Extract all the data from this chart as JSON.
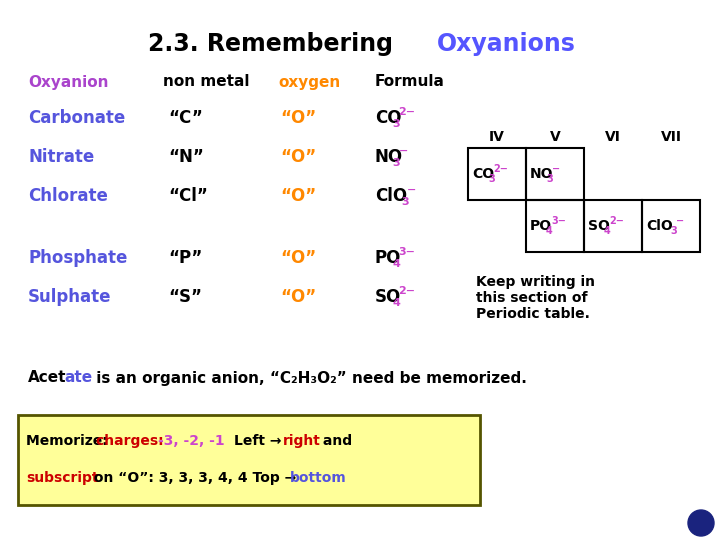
{
  "title_prefix": "2.3. Remembering ",
  "title_suffix": "Oxyanions",
  "title_prefix_color": "#000000",
  "title_suffix_color": "#5555ff",
  "bg_color": "#ffffff",
  "header_colors": [
    "#aa44cc",
    "#000000",
    "#ff8800",
    "#000000"
  ],
  "rows": [
    {
      "name": "Carbonate",
      "nm": "“C”",
      "ox": "“O”",
      "formula": [
        "CO",
        "3",
        "2−"
      ]
    },
    {
      "name": "Nitrate",
      "nm": "“N”",
      "ox": "“O”",
      "formula": [
        "NO",
        "3",
        "−"
      ]
    },
    {
      "name": "Chlorate",
      "nm": "“Cl”",
      "ox": "“O”",
      "formula": [
        "ClO",
        "3",
        "−"
      ]
    },
    {
      "name": "Phosphate",
      "nm": "“P”",
      "ox": "“O”",
      "formula": [
        "PO",
        "4",
        "3−"
      ]
    },
    {
      "name": "Sulphate",
      "nm": "“S”",
      "ox": "“O”",
      "formula": [
        "SO",
        "4",
        "2−"
      ]
    }
  ],
  "name_color": "#5555dd",
  "ox_color": "#ff8800",
  "formula_sub_color": "#cc44cc",
  "periodic_headers": [
    "IV",
    "V",
    "VI",
    "VII"
  ],
  "cell_contents": [
    [
      0,
      0,
      "CO",
      "3",
      "2−"
    ],
    [
      1,
      0,
      "NO",
      "3",
      "−"
    ],
    [
      1,
      1,
      "PO",
      "4",
      "3−"
    ],
    [
      2,
      1,
      "SO",
      "4",
      "2−"
    ],
    [
      3,
      1,
      "ClO",
      "3",
      "−"
    ]
  ],
  "memorize_box_bg": "#ffff99",
  "globe_color": "#1a237e"
}
